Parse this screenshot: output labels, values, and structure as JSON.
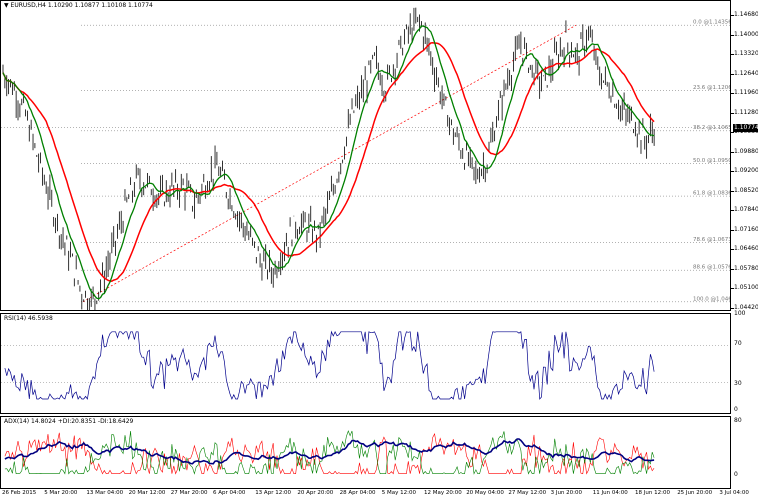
{
  "main": {
    "symbol_label": "EURUSD,H4",
    "ohlc": "1.10290 1.10877 1.10108 1.10774",
    "current_price": "1.10774",
    "price_axis": [
      "1.14680",
      "1.14000",
      "1.13320",
      "1.12640",
      "1.11960",
      "1.11280",
      "1.10580",
      "1.09880",
      "1.09200",
      "1.08520",
      "1.07840",
      "1.07160",
      "1.06460",
      "1.05780",
      "1.05100",
      "1.04420"
    ],
    "fib_levels": [
      {
        "label": "0.0 @1.14356"
      },
      {
        "label": "23.6 @1.12068"
      },
      {
        "label": "38.2 @1.10655"
      },
      {
        "label": "50.0 @1.09507"
      },
      {
        "label": "61.8 @1.08363"
      },
      {
        "label": "78.6 @1.06732"
      },
      {
        "label": "88.6 @1.05763"
      },
      {
        "label": "100.0 @1.04656"
      }
    ]
  },
  "rsi": {
    "label": "RSI(14) 46.5938",
    "axis": [
      "100",
      "70",
      "30",
      "0"
    ]
  },
  "adx": {
    "label": "ADX(14) 14.8024 +DI:20.8351 -DI:18.6429",
    "axis": [
      "80",
      "0"
    ]
  },
  "time_axis": [
    "26 Feb 2015",
    "5 Mar 20:00",
    "13 Mar 04:00",
    "20 Mar 12:00",
    "27 Mar 20:00",
    "6 Apr 04:00",
    "13 Apr 12:00",
    "20 Apr 20:00",
    "28 Apr 04:00",
    "5 May 12:00",
    "12 May 20:00",
    "20 May 04:00",
    "27 May 12:00",
    "3 Jun 20:00",
    "11 Jun 04:00",
    "18 Jun 12:00",
    "25 Jun 20:00",
    "3 Jul 04:00"
  ],
  "colors": {
    "ma_fast": "#008000",
    "ma_slow": "#ff0000",
    "rsi": "#00008b",
    "adx": "#000080",
    "plus_di": "#008000",
    "minus_di": "#ff0000",
    "trend": "#ff0000"
  },
  "chart_data": {
    "type": "line",
    "series": [
      {
        "name": "EURUSD,H4",
        "values": [
          1.127,
          1.121,
          1.112,
          1.098,
          1.085,
          1.072,
          1.062,
          1.05,
          1.047,
          1.056,
          1.068,
          1.081,
          1.09,
          1.087,
          1.083,
          1.086,
          1.087,
          1.081,
          1.089,
          1.094,
          1.085,
          1.076,
          1.068,
          1.06,
          1.057,
          1.066,
          1.074,
          1.073,
          1.07,
          1.081,
          1.096,
          1.112,
          1.121,
          1.131,
          1.122,
          1.133,
          1.141,
          1.145,
          1.133,
          1.118,
          1.106,
          1.098,
          1.091,
          1.096,
          1.113,
          1.127,
          1.137,
          1.128,
          1.123,
          1.131,
          1.138,
          1.132,
          1.141,
          1.126,
          1.121,
          1.113,
          1.11,
          1.103,
          1.108
        ]
      }
    ]
  }
}
